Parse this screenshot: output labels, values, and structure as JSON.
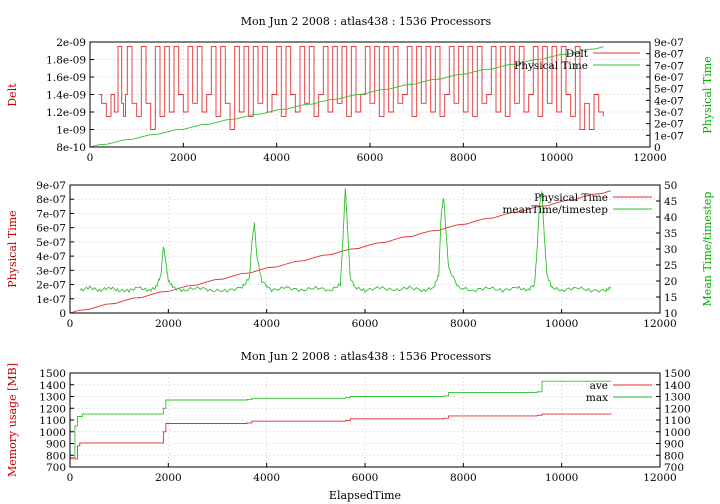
{
  "chart_data": [
    {
      "type": "line",
      "title": "Mon Jun 2 2008 : atlas438 : 1536 Processors",
      "xlabel": "",
      "xlim": [
        0,
        12000
      ],
      "xticks": [
        "0",
        "2000",
        "4000",
        "6000",
        "8000",
        "10000",
        "12000"
      ],
      "y_left": {
        "label": "Delt",
        "lim": [
          8e-10,
          2e-09
        ],
        "ticks": [
          "8e-10",
          "1e-09",
          "1.2e-09",
          "1.4e-09",
          "1.6e-09",
          "1.8e-09",
          "2e-09"
        ]
      },
      "y_right": {
        "label": "Physical Time",
        "lim": [
          0,
          9e-07
        ],
        "ticks": [
          "0",
          "1e-07",
          "2e-07",
          "3e-07",
          "4e-07",
          "5e-07",
          "6e-07",
          "7e-07",
          "8e-07",
          "9e-07"
        ]
      },
      "legend_position": "top-right",
      "grid": true,
      "series": [
        {
          "name": "Delt",
          "axis": "left",
          "color": "#e03030",
          "style": "noisy",
          "x": [
            200,
            250,
            350,
            450,
            520,
            600,
            680,
            720,
            760,
            800,
            900,
            1000,
            1100,
            1200,
            1300,
            1400,
            1500,
            1600,
            1700,
            1800,
            1900,
            2000,
            2100,
            2200,
            2300,
            2400,
            2500,
            2600,
            2700,
            2800,
            2900,
            3000,
            3100,
            3200,
            3300,
            3400,
            3500,
            3600,
            3700,
            3800,
            3900,
            4000,
            4100,
            4200,
            4300,
            4400,
            4500,
            4600,
            4700,
            4800,
            4900,
            5000,
            5100,
            5200,
            5300,
            5400,
            5500,
            5600,
            5700,
            5800,
            5900,
            6000,
            6100,
            6200,
            6300,
            6400,
            6500,
            6600,
            6700,
            6800,
            6900,
            7000,
            7100,
            7200,
            7300,
            7400,
            7500,
            7600,
            7700,
            7800,
            7900,
            8000,
            8100,
            8200,
            8300,
            8400,
            8500,
            8600,
            8700,
            8800,
            8900,
            9000,
            9100,
            9200,
            9300,
            9400,
            9500,
            9600,
            9700,
            9800,
            9900,
            10000,
            10100,
            10200,
            10300,
            10400,
            10500,
            10600,
            10700,
            10800,
            10900,
            11000
          ],
          "values": [
            1.4e-09,
            1.3e-09,
            1.15e-09,
            1.4e-09,
            1.2e-09,
            1.95e-09,
            1.3e-09,
            1.15e-09,
            1.4e-09,
            1.95e-09,
            1.3e-09,
            1.15e-09,
            1.95e-09,
            1.3e-09,
            1e-09,
            1.95e-09,
            1.15e-09,
            1.95e-09,
            1.2e-09,
            1.95e-09,
            1.4e-09,
            1.2e-09,
            1.95e-09,
            1.3e-09,
            1.95e-09,
            1.2e-09,
            1.4e-09,
            1.95e-09,
            1.15e-09,
            1.95e-09,
            1.3e-09,
            1e-09,
            1.95e-09,
            1.2e-09,
            1.95e-09,
            1.15e-09,
            1.95e-09,
            1.3e-09,
            1.95e-09,
            1.2e-09,
            1.4e-09,
            1.95e-09,
            1.15e-09,
            1.95e-09,
            1.4e-09,
            1.2e-09,
            1.95e-09,
            1.3e-09,
            1.95e-09,
            1.15e-09,
            1.4e-09,
            1.95e-09,
            1.2e-09,
            1.95e-09,
            1.3e-09,
            1.95e-09,
            1.15e-09,
            1.95e-09,
            1.2e-09,
            1.4e-09,
            1.95e-09,
            1.3e-09,
            1.95e-09,
            1.15e-09,
            1.95e-09,
            1.2e-09,
            1.95e-09,
            1.3e-09,
            1.4e-09,
            1.95e-09,
            1.15e-09,
            1.95e-09,
            1.3e-09,
            1.95e-09,
            1.2e-09,
            1.95e-09,
            1.15e-09,
            1.4e-09,
            1.95e-09,
            1.3e-09,
            1.95e-09,
            1.2e-09,
            1.95e-09,
            1.15e-09,
            1.95e-09,
            1.3e-09,
            1.4e-09,
            1.95e-09,
            1.2e-09,
            1.95e-09,
            1.15e-09,
            1.95e-09,
            1.3e-09,
            1.95e-09,
            1.2e-09,
            1.4e-09,
            1.95e-09,
            1.15e-09,
            1.95e-09,
            1.3e-09,
            1.95e-09,
            1.2e-09,
            1.95e-09,
            1.4e-09,
            1.15e-09,
            1.95e-09,
            1e-09,
            1.3e-09,
            1e-09,
            1.4e-09,
            1.2e-09,
            1.15e-09
          ]
        },
        {
          "name": "Physical Time",
          "axis": "right",
          "color": "#30c030",
          "style": "smooth",
          "x": [
            0,
            11000
          ],
          "values": [
            0,
            8.6e-07
          ]
        }
      ]
    },
    {
      "type": "line",
      "title": "",
      "xlabel": "",
      "xlim": [
        0,
        12000
      ],
      "xticks": [
        "0",
        "2000",
        "4000",
        "6000",
        "8000",
        "10000",
        "12000"
      ],
      "y_left": {
        "label": "Physical Time",
        "lim": [
          0,
          9e-07
        ],
        "ticks": [
          "0",
          "1e-07",
          "2e-07",
          "3e-07",
          "4e-07",
          "5e-07",
          "6e-07",
          "7e-07",
          "8e-07",
          "9e-07"
        ]
      },
      "y_right": {
        "label": "Mean Time/timestep",
        "lim": [
          10,
          50
        ],
        "ticks": [
          "10",
          "15",
          "20",
          "25",
          "30",
          "35",
          "40",
          "45",
          "50"
        ]
      },
      "legend_position": "top-right",
      "grid": true,
      "series": [
        {
          "name": "Physical Time",
          "axis": "left",
          "color": "#e03030",
          "style": "smooth",
          "x": [
            0,
            11000
          ],
          "values": [
            0,
            8.6e-07
          ]
        },
        {
          "name": "meanTime/timestep",
          "axis": "right",
          "color": "#30c030",
          "style": "wavy",
          "x": [
            200,
            400,
            600,
            800,
            1000,
            1200,
            1400,
            1600,
            1750,
            1850,
            1900,
            1950,
            2000,
            2100,
            2300,
            2600,
            2900,
            3200,
            3500,
            3650,
            3700,
            3750,
            3800,
            3900,
            4100,
            4400,
            4700,
            5000,
            5300,
            5500,
            5550,
            5600,
            5650,
            5700,
            5800,
            6000,
            6300,
            6600,
            6900,
            7200,
            7400,
            7500,
            7550,
            7600,
            7700,
            7900,
            8200,
            8500,
            8800,
            9100,
            9300,
            9450,
            9500,
            9550,
            9600,
            9650,
            9700,
            9800,
            10000,
            10300,
            10600,
            10900,
            11000
          ],
          "values": [
            17,
            18,
            17,
            18,
            17,
            17,
            18,
            17,
            18,
            22,
            31,
            26,
            20,
            18,
            17,
            18,
            17,
            17,
            18,
            21,
            32,
            38,
            28,
            20,
            17,
            18,
            17,
            18,
            17,
            19,
            33,
            49,
            35,
            21,
            18,
            17,
            18,
            17,
            18,
            17,
            18,
            22,
            41,
            46,
            24,
            18,
            17,
            18,
            17,
            18,
            17,
            19,
            30,
            44,
            48,
            33,
            22,
            18,
            17,
            18,
            17,
            17,
            18
          ]
        }
      ]
    },
    {
      "type": "line",
      "title": "Mon Jun 2 2008 : atlas438 : 1536 Processors",
      "xlabel": "ElapsedTime",
      "xlim": [
        0,
        12000
      ],
      "xticks": [
        "0",
        "2000",
        "4000",
        "6000",
        "8000",
        "10000",
        "12000"
      ],
      "y_left": {
        "label": "Memory usage [MB]",
        "lim": [
          700,
          1500
        ],
        "ticks": [
          "700",
          "800",
          "900",
          "1000",
          "1100",
          "1200",
          "1300",
          "1400",
          "1500"
        ]
      },
      "y_right": {
        "label": "",
        "lim": [
          700,
          1500
        ],
        "ticks": [
          "700",
          "800",
          "900",
          "1000",
          "1100",
          "1200",
          "1300",
          "1400",
          "1500"
        ]
      },
      "legend_position": "top-right",
      "grid": true,
      "series": [
        {
          "name": "ave",
          "axis": "left",
          "color": "#e03030",
          "style": "step",
          "x": [
            0,
            120,
            150,
            200,
            1800,
            1900,
            1950,
            3600,
            3700,
            5600,
            5700,
            7600,
            7700,
            9500,
            9600,
            11000
          ],
          "values": [
            770,
            770,
            880,
            905,
            905,
            1000,
            1070,
            1075,
            1090,
            1095,
            1110,
            1115,
            1135,
            1140,
            1150,
            1155
          ]
        },
        {
          "name": "max",
          "axis": "left",
          "color": "#30c030",
          "style": "step",
          "x": [
            0,
            100,
            150,
            250,
            1800,
            1900,
            1950,
            3600,
            3700,
            5600,
            5700,
            7600,
            7700,
            9500,
            9600,
            11000
          ],
          "values": [
            780,
            1050,
            1130,
            1150,
            1150,
            1200,
            1270,
            1275,
            1285,
            1290,
            1300,
            1305,
            1335,
            1340,
            1430,
            1435
          ]
        }
      ]
    }
  ]
}
